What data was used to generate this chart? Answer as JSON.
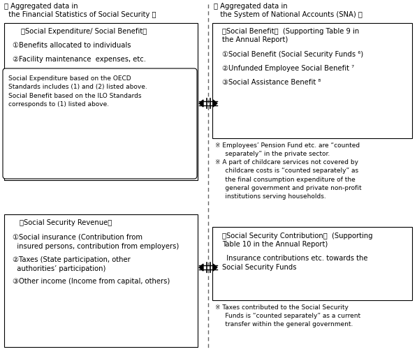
{
  "title_left_line1": "【 Aggregated data in",
  "title_left_line2": "  the Financial Statistics of Social Security 】",
  "title_right_line1": "【 Aggregated data in",
  "title_right_line2": "   the System of National Accounts (SNA) 】",
  "box_tl_title": "【Social Expenditure/ Social Benefit】",
  "box_tl_item1": "①Benefits allocated to individuals",
  "box_tl_item2": "②Facility maintenance  expenses, etc.",
  "box_tl_note": "Social Expenditure based on the OECD\nStandards includes (1) and (2) listed above.\nSocial Benefit based on the ILO Standards\ncorresponds to (1) listed above.",
  "box_tr_title_line1": "【Social Benefit】  (Supporting Table 9 in",
  "box_tr_title_line2": "the Annual Report)",
  "box_tr_item1": "①Social Benefit (Social Security Funds ⁶)",
  "box_tr_item2": "②Unfunded Employee Social Benefit ⁷",
  "box_tr_item3": "③Social Assistance Benefit ⁸",
  "box_tr_note": "※ Employees’ Pension Fund etc. are “counted\n     separately” in the private sector.\n※ A part of childcare services not covered by\n     childcare costs is “counted separately” as\n     the final consumption expenditure of the\n     general government and private non-profit\n     institutions serving households.",
  "box_bl_title": "【Social Security Revenue】",
  "box_bl_item1": "①Social insurance (Contribution from\n  insured persons, contribution from employers)",
  "box_bl_item2": "②Taxes (State participation, other\n  authorities’ participation)",
  "box_bl_item3": "③Other income (Income from capital, others)",
  "box_br_title_line1": "【Social Security Contribution】  (Supporting",
  "box_br_title_line2": "Table 10 in the Annual Report)",
  "box_br_body": "  Insurance contributions etc. towards the\nSocial Security Funds",
  "box_br_note": "※ Taxes contributed to the Social Security\n     Funds is “counted separately” as a current\n     transfer within the general government.",
  "bg_color": "#ffffff",
  "text_color": "#000000",
  "box_edge_color": "#000000",
  "dash_color": "#666666"
}
